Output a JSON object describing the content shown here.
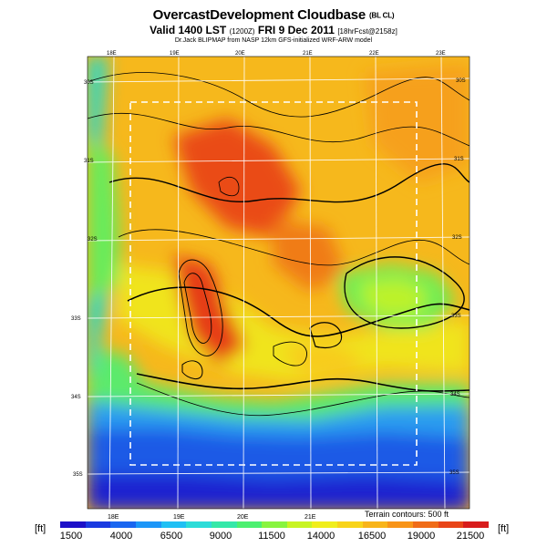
{
  "title": {
    "main": "OvercastDevelopment Cloudbase",
    "main_suffix": "(BL CL)",
    "valid_line": "Valid 1400 LST",
    "valid_utc": "(1200Z)",
    "valid_date": "FRI 9 Dec 2011",
    "valid_suffix": "[18hrFcst@2158z]",
    "model_line": "Dr.Jack BLIPMAP from NASP 12km GFS-initialized WRF-ARW model"
  },
  "map": {
    "lon_labels": [
      "18E",
      "19E",
      "20E",
      "21E",
      "22E",
      "23E"
    ],
    "lat_labels": [
      "30S",
      "31S",
      "32S",
      "33S",
      "34S",
      "35S"
    ],
    "terrain_note": "Terrain contours: 500 ft"
  },
  "colorbar": {
    "unit": "[ft]",
    "labels": [
      "1500",
      "4000",
      "6500",
      "9000",
      "11500",
      "14000",
      "16500",
      "19000",
      "21500"
    ],
    "colors": [
      "#1c10c8",
      "#1a3ae0",
      "#1a66f0",
      "#1c96f8",
      "#20c0f4",
      "#2cdcd8",
      "#34e8a8",
      "#4cf070",
      "#88f440",
      "#c8f424",
      "#f0ee1c",
      "#f8d41a",
      "#f8b41a",
      "#f89418",
      "#f06c18",
      "#e84418",
      "#d81c1c"
    ]
  },
  "legend": {
    "colors": {
      "low": "#1c10c8",
      "mid": "#4cf070",
      "high": "#e84418",
      "frame": "#ffffff",
      "contour": "#000000"
    }
  }
}
